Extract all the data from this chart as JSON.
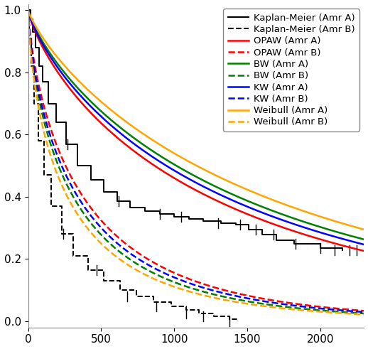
{
  "title": "",
  "xlim": [
    0,
    2300
  ],
  "ylim": [
    -0.02,
    1.02
  ],
  "xticks": [
    0,
    500,
    1000,
    1500,
    2000
  ],
  "yticks": [
    0.0,
    0.2,
    0.4,
    0.6,
    0.8,
    1.0
  ],
  "legend_entries": [
    {
      "label": "Kaplan-Meier (Amr A)",
      "color": "black",
      "linestyle": "solid",
      "linewidth": 1.5
    },
    {
      "label": "Kaplan-Meier (Amr B)",
      "color": "black",
      "linestyle": "dashed",
      "linewidth": 1.5
    },
    {
      "label": "OPAW (Amr A)",
      "color": "red",
      "linestyle": "solid",
      "linewidth": 1.8
    },
    {
      "label": "OPAW (Amr B)",
      "color": "red",
      "linestyle": "dashed",
      "linewidth": 1.8
    },
    {
      "label": "BW (Amr A)",
      "color": "green",
      "linestyle": "solid",
      "linewidth": 1.8
    },
    {
      "label": "BW (Amr B)",
      "color": "green",
      "linestyle": "dashed",
      "linewidth": 1.8
    },
    {
      "label": "KW (Amr A)",
      "color": "blue",
      "linestyle": "solid",
      "linewidth": 1.8
    },
    {
      "label": "KW (Amr B)",
      "color": "blue",
      "linestyle": "dashed",
      "linewidth": 1.8
    },
    {
      "label": "Weibull (Amr A)",
      "color": "orange",
      "linestyle": "solid",
      "linewidth": 1.8
    },
    {
      "label": "Weibull (Amr B)",
      "color": "orange",
      "linestyle": "dashed",
      "linewidth": 1.8
    }
  ],
  "km_a_times": [
    15,
    30,
    50,
    75,
    100,
    140,
    190,
    260,
    340,
    430,
    520,
    610,
    700,
    800,
    900,
    1000,
    1100,
    1200,
    1320,
    1420,
    1510,
    1600,
    1700,
    1820,
    2000,
    2150
  ],
  "km_a_surv": [
    0.97,
    0.93,
    0.88,
    0.82,
    0.77,
    0.7,
    0.64,
    0.57,
    0.5,
    0.455,
    0.415,
    0.385,
    0.365,
    0.355,
    0.345,
    0.335,
    0.328,
    0.322,
    0.316,
    0.31,
    0.295,
    0.278,
    0.26,
    0.248,
    0.235,
    0.228
  ],
  "km_b_times": [
    8,
    20,
    40,
    70,
    110,
    160,
    230,
    310,
    410,
    520,
    630,
    740,
    860,
    980,
    1080,
    1170,
    1270,
    1380,
    1430
  ],
  "km_b_surv": [
    0.91,
    0.82,
    0.7,
    0.58,
    0.47,
    0.37,
    0.28,
    0.21,
    0.165,
    0.13,
    0.1,
    0.08,
    0.062,
    0.048,
    0.036,
    0.026,
    0.015,
    0.006,
    0.001
  ],
  "cens_a_times": [
    270,
    620,
    900,
    1050,
    1300,
    1450,
    1560,
    1680,
    1830,
    2000,
    2100,
    2200,
    2250
  ],
  "cens_a_surv": [
    0.57,
    0.385,
    0.345,
    0.335,
    0.316,
    0.31,
    0.295,
    0.278,
    0.248,
    0.235,
    0.228,
    0.228,
    0.228
  ],
  "cens_b_times": [
    240,
    470,
    680,
    880,
    1080,
    1200,
    1380
  ],
  "cens_b_surv": [
    0.28,
    0.165,
    0.08,
    0.048,
    0.026,
    0.015,
    0.001
  ],
  "background_color": "#ffffff",
  "tick_label_fontsize": 11,
  "legend_fontsize": 9.5,
  "curve_lw": 1.8,
  "km_lw": 1.4,
  "tick_size": 0.016
}
